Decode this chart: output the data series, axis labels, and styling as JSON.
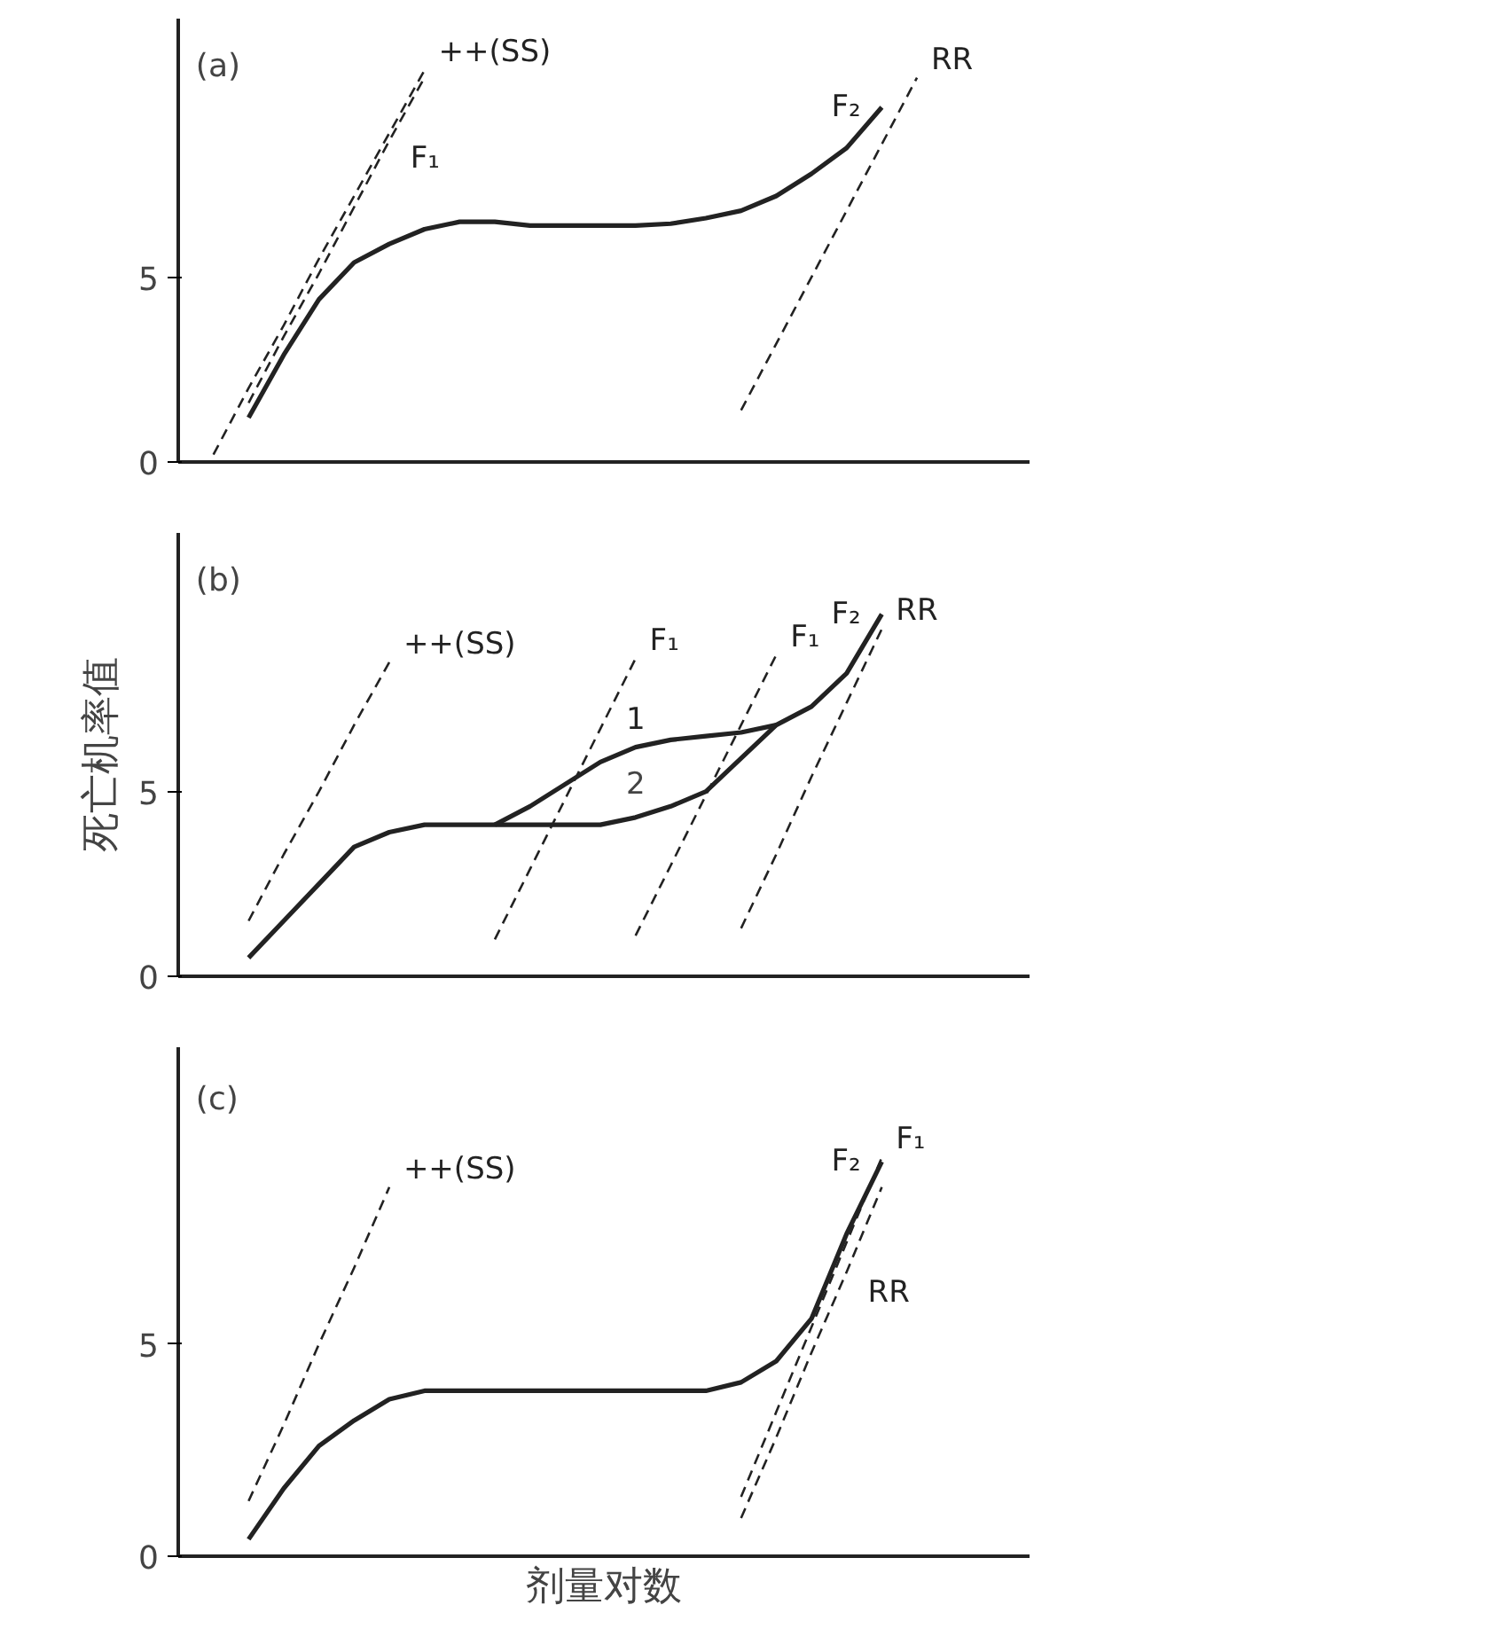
{
  "chart_data": [
    {
      "type": "line",
      "title": "(a)",
      "categories": [
        null,
        null,
        null,
        null,
        null,
        null,
        null,
        null,
        null,
        null,
        null,
        null,
        null,
        null,
        null,
        null,
        null,
        null,
        null,
        null,
        null,
        null,
        null,
        null
      ],
      "ylim": [
        0,
        12
      ],
      "yticks": [
        0,
        5
      ],
      "tick_labels": "y",
      "grid": false,
      "series": [
        {
          "name": "F₂",
          "color": "#222222",
          "line_style": "solid",
          "values": [
            null,
            1.2,
            2.9,
            4.4,
            5.4,
            5.9,
            6.3,
            6.5,
            6.5,
            6.4,
            6.4,
            6.4,
            6.4,
            6.45,
            6.6,
            6.8,
            7.2,
            7.8,
            8.5,
            9.6,
            null,
            null,
            null,
            null
          ]
        },
        {
          "name": "++(SS)",
          "color": "#222222",
          "line_style": "dashed",
          "values": [
            0.2,
            2.0,
            3.7,
            5.5,
            7.2,
            8.9,
            10.6,
            null,
            null,
            null,
            null,
            null,
            null,
            null,
            null,
            null,
            null,
            null,
            null,
            null,
            null,
            null,
            null,
            null
          ]
        },
        {
          "name": "F₁",
          "color": "#222222",
          "line_style": "dashed",
          "values": [
            null,
            1.6,
            3.4,
            5.1,
            6.9,
            8.7,
            10.4,
            null,
            null,
            null,
            null,
            null,
            null,
            null,
            null,
            null,
            null,
            null,
            null,
            null,
            null,
            null,
            null,
            null
          ]
        },
        {
          "name": "RR",
          "color": "#222222",
          "line_style": "dashed",
          "values": [
            null,
            null,
            null,
            null,
            null,
            null,
            null,
            null,
            null,
            null,
            null,
            null,
            null,
            null,
            null,
            1.4,
            3.2,
            5.0,
            6.8,
            8.6,
            10.4,
            null,
            null,
            null
          ]
        }
      ]
    },
    {
      "type": "line",
      "title": "(b)",
      "ylabel": "死亡机率值",
      "annotations": [
        "2"
      ],
      "categories": [
        null,
        null,
        null,
        null,
        null,
        null,
        null,
        null,
        null,
        null,
        null,
        null,
        null,
        null,
        null,
        null,
        null,
        null,
        null,
        null,
        null,
        null,
        null,
        null
      ],
      "ylim": [
        0,
        12
      ],
      "yticks": [
        0,
        5
      ],
      "tick_labels": "y",
      "grid": false,
      "series": [
        {
          "name": "F₂",
          "color": "#222222",
          "line_style": "solid",
          "values": [
            null,
            0.5,
            1.5,
            2.5,
            3.5,
            3.9,
            4.1,
            4.1,
            4.1,
            4.1,
            4.1,
            4.1,
            4.3,
            4.6,
            5.0,
            5.9,
            6.8,
            7.3,
            8.2,
            9.8,
            null,
            null,
            null,
            null
          ]
        },
        {
          "name": "1",
          "color": "#222222",
          "line_style": "solid",
          "values": [
            null,
            null,
            null,
            null,
            null,
            null,
            null,
            null,
            4.1,
            4.6,
            5.2,
            5.8,
            6.2,
            6.4,
            6.5,
            6.6,
            6.8,
            null,
            null,
            null,
            null,
            null,
            null,
            null
          ]
        },
        {
          "name": "++(SS)",
          "color": "#222222",
          "line_style": "dashed",
          "values": [
            null,
            1.5,
            3.3,
            5.0,
            6.8,
            8.5,
            null,
            null,
            null,
            null,
            null,
            null,
            null,
            null,
            null,
            null,
            null,
            null,
            null,
            null,
            null,
            null,
            null,
            null
          ]
        },
        {
          "name": "F₁",
          "color": "#222222",
          "line_style": "dashed",
          "values": [
            null,
            null,
            null,
            null,
            null,
            null,
            null,
            null,
            1.0,
            2.9,
            4.8,
            6.7,
            8.6,
            null,
            null,
            null,
            null,
            null,
            null,
            null,
            null,
            null,
            null,
            null
          ]
        },
        {
          "name": "F₁",
          "color": "#222222",
          "line_style": "dashed",
          "values": [
            null,
            null,
            null,
            null,
            null,
            null,
            null,
            null,
            null,
            null,
            null,
            null,
            1.1,
            3.0,
            4.9,
            6.8,
            8.7,
            null,
            null,
            null,
            null,
            null,
            null,
            null
          ]
        },
        {
          "name": "RR",
          "color": "#222222",
          "line_style": "dashed",
          "values": [
            null,
            null,
            null,
            null,
            null,
            null,
            null,
            null,
            null,
            null,
            null,
            null,
            null,
            null,
            null,
            1.3,
            3.3,
            5.4,
            7.4,
            9.4,
            null,
            null,
            null,
            null
          ]
        }
      ]
    },
    {
      "type": "line",
      "title": "(c)",
      "xlabel": "剂量对数",
      "categories": [
        null,
        null,
        null,
        null,
        null,
        null,
        null,
        null,
        null,
        null,
        null,
        null,
        null,
        null,
        null,
        null,
        null,
        null,
        null,
        null,
        null,
        null,
        null,
        null
      ],
      "ylim": [
        0,
        12
      ],
      "yticks": [
        0,
        5
      ],
      "tick_labels": "y",
      "grid": false,
      "series": [
        {
          "name": "F₂",
          "color": "#222222",
          "line_style": "solid",
          "values": [
            null,
            0.4,
            1.6,
            2.6,
            3.2,
            3.7,
            3.9,
            3.9,
            3.9,
            3.9,
            3.9,
            3.9,
            3.9,
            3.9,
            3.9,
            4.1,
            4.6,
            5.6,
            7.6,
            9.3,
            null,
            null,
            null,
            null
          ]
        },
        {
          "name": "++(SS)",
          "color": "#222222",
          "line_style": "dashed",
          "values": [
            null,
            1.3,
            3.1,
            5.0,
            6.8,
            8.7,
            null,
            null,
            null,
            null,
            null,
            null,
            null,
            null,
            null,
            null,
            null,
            null,
            null,
            null,
            null,
            null,
            null,
            null
          ]
        },
        {
          "name": "F₁",
          "color": "#222222",
          "line_style": "dashed",
          "values": [
            null,
            null,
            null,
            null,
            null,
            null,
            null,
            null,
            null,
            null,
            null,
            null,
            null,
            null,
            null,
            1.4,
            3.4,
            5.4,
            7.4,
            9.4,
            null,
            null,
            null,
            null
          ]
        },
        {
          "name": "RR",
          "color": "#222222",
          "line_style": "dashed",
          "values": [
            null,
            null,
            null,
            null,
            null,
            null,
            null,
            null,
            null,
            null,
            null,
            null,
            null,
            null,
            null,
            0.9,
            2.8,
            4.8,
            6.7,
            8.7,
            null,
            null,
            null,
            null
          ]
        }
      ]
    }
  ]
}
